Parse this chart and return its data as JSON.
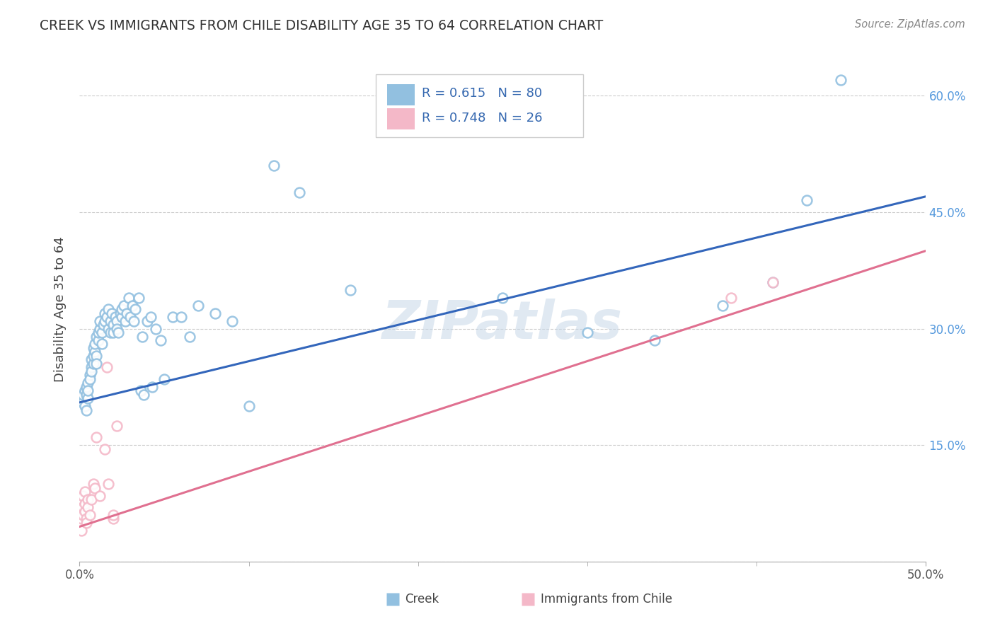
{
  "title": "CREEK VS IMMIGRANTS FROM CHILE DISABILITY AGE 35 TO 64 CORRELATION CHART",
  "source": "Source: ZipAtlas.com",
  "ylabel": "Disability Age 35 to 64",
  "xlim": [
    0.0,
    0.5
  ],
  "ylim": [
    0.0,
    0.65
  ],
  "xticks": [
    0.0,
    0.5
  ],
  "xticklabels": [
    "0.0%",
    "50.0%"
  ],
  "xticks_minor": [
    0.1,
    0.2,
    0.3,
    0.4
  ],
  "yticks": [
    0.0,
    0.15,
    0.3,
    0.45,
    0.6
  ],
  "yticklabels_right": [
    "",
    "15.0%",
    "30.0%",
    "45.0%",
    "60.0%"
  ],
  "creek_color": "#92c0e0",
  "chile_color": "#f4b8c8",
  "creek_line_color": "#3366bb",
  "chile_line_color": "#e07090",
  "watermark": "ZIPatlas",
  "creek_scatter": [
    [
      0.001,
      0.21
    ],
    [
      0.002,
      0.205
    ],
    [
      0.002,
      0.215
    ],
    [
      0.003,
      0.2
    ],
    [
      0.003,
      0.22
    ],
    [
      0.004,
      0.215
    ],
    [
      0.004,
      0.225
    ],
    [
      0.004,
      0.195
    ],
    [
      0.005,
      0.23
    ],
    [
      0.005,
      0.21
    ],
    [
      0.005,
      0.22
    ],
    [
      0.006,
      0.24
    ],
    [
      0.006,
      0.235
    ],
    [
      0.007,
      0.25
    ],
    [
      0.007,
      0.245
    ],
    [
      0.007,
      0.26
    ],
    [
      0.008,
      0.255
    ],
    [
      0.008,
      0.265
    ],
    [
      0.008,
      0.275
    ],
    [
      0.009,
      0.27
    ],
    [
      0.009,
      0.28
    ],
    [
      0.01,
      0.265
    ],
    [
      0.01,
      0.255
    ],
    [
      0.01,
      0.29
    ],
    [
      0.011,
      0.285
    ],
    [
      0.011,
      0.295
    ],
    [
      0.012,
      0.3
    ],
    [
      0.012,
      0.31
    ],
    [
      0.013,
      0.295
    ],
    [
      0.013,
      0.28
    ],
    [
      0.014,
      0.305
    ],
    [
      0.015,
      0.32
    ],
    [
      0.015,
      0.31
    ],
    [
      0.016,
      0.315
    ],
    [
      0.017,
      0.325
    ],
    [
      0.017,
      0.3
    ],
    [
      0.018,
      0.31
    ],
    [
      0.018,
      0.295
    ],
    [
      0.019,
      0.32
    ],
    [
      0.02,
      0.305
    ],
    [
      0.02,
      0.295
    ],
    [
      0.021,
      0.315
    ],
    [
      0.022,
      0.31
    ],
    [
      0.022,
      0.3
    ],
    [
      0.023,
      0.295
    ],
    [
      0.024,
      0.32
    ],
    [
      0.025,
      0.315
    ],
    [
      0.025,
      0.325
    ],
    [
      0.026,
      0.33
    ],
    [
      0.027,
      0.31
    ],
    [
      0.028,
      0.32
    ],
    [
      0.029,
      0.34
    ],
    [
      0.03,
      0.315
    ],
    [
      0.031,
      0.33
    ],
    [
      0.032,
      0.31
    ],
    [
      0.033,
      0.325
    ],
    [
      0.035,
      0.34
    ],
    [
      0.036,
      0.22
    ],
    [
      0.037,
      0.29
    ],
    [
      0.038,
      0.215
    ],
    [
      0.04,
      0.31
    ],
    [
      0.042,
      0.315
    ],
    [
      0.043,
      0.225
    ],
    [
      0.045,
      0.3
    ],
    [
      0.048,
      0.285
    ],
    [
      0.05,
      0.235
    ],
    [
      0.055,
      0.315
    ],
    [
      0.06,
      0.315
    ],
    [
      0.065,
      0.29
    ],
    [
      0.07,
      0.33
    ],
    [
      0.08,
      0.32
    ],
    [
      0.09,
      0.31
    ],
    [
      0.1,
      0.2
    ],
    [
      0.115,
      0.51
    ],
    [
      0.13,
      0.475
    ],
    [
      0.16,
      0.35
    ],
    [
      0.25,
      0.34
    ],
    [
      0.3,
      0.295
    ],
    [
      0.34,
      0.285
    ],
    [
      0.38,
      0.33
    ],
    [
      0.41,
      0.36
    ],
    [
      0.43,
      0.465
    ],
    [
      0.45,
      0.62
    ]
  ],
  "chile_scatter": [
    [
      0.001,
      0.04
    ],
    [
      0.001,
      0.055
    ],
    [
      0.002,
      0.07
    ],
    [
      0.002,
      0.085
    ],
    [
      0.002,
      0.06
    ],
    [
      0.003,
      0.065
    ],
    [
      0.003,
      0.075
    ],
    [
      0.003,
      0.09
    ],
    [
      0.004,
      0.055
    ],
    [
      0.004,
      0.05
    ],
    [
      0.005,
      0.08
    ],
    [
      0.005,
      0.07
    ],
    [
      0.006,
      0.06
    ],
    [
      0.007,
      0.08
    ],
    [
      0.008,
      0.1
    ],
    [
      0.009,
      0.095
    ],
    [
      0.01,
      0.16
    ],
    [
      0.012,
      0.085
    ],
    [
      0.015,
      0.145
    ],
    [
      0.016,
      0.25
    ],
    [
      0.017,
      0.1
    ],
    [
      0.02,
      0.055
    ],
    [
      0.02,
      0.06
    ],
    [
      0.022,
      0.175
    ],
    [
      0.385,
      0.34
    ],
    [
      0.41,
      0.36
    ]
  ],
  "creek_line_x": [
    0.0,
    0.5
  ],
  "creek_line_y": [
    0.205,
    0.47
  ],
  "chile_line_x": [
    0.0,
    0.5
  ],
  "chile_line_y": [
    0.045,
    0.4
  ]
}
